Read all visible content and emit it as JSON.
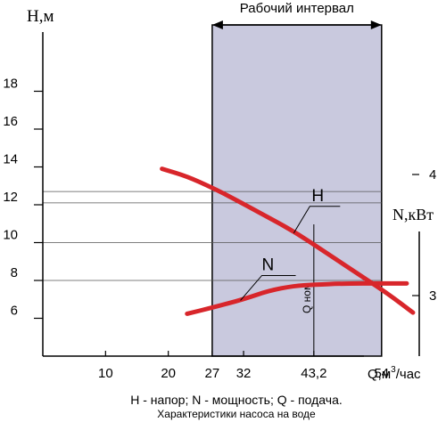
{
  "chart_data": {
    "type": "line",
    "x_tick_labels": [
      "10",
      "20",
      "27",
      "32",
      "43,2",
      "54"
    ],
    "left_y_tick_labels": [
      "6",
      "8",
      "10",
      "12",
      "14",
      "16",
      "18"
    ],
    "right_y_tick_labels": [
      "3",
      "4"
    ],
    "left_axis_label": "H,м",
    "right_axis_label": "N,кВт",
    "x_axis_label_main": "Q,м",
    "x_axis_label_sup": "3",
    "x_axis_label_tail": "/час",
    "xlim": [
      0,
      60
    ],
    "left_ylim": [
      4,
      20
    ],
    "right_ylim": [
      2.5,
      5
    ],
    "working_interval": {
      "label": "Рабочий интервал",
      "x_start": 27,
      "x_end": 54,
      "color": "#c9c9de"
    },
    "nominal": {
      "label": "Q ном",
      "x": 43.2
    },
    "reference_lines_H": [
      12.7,
      12.1,
      10,
      8
    ],
    "series": [
      {
        "name": "H",
        "axis": "left",
        "color": "#d8262b",
        "x": [
          19,
          23,
          27,
          30,
          35,
          40,
          45,
          50,
          55,
          59
        ],
        "y": [
          13.9,
          13.5,
          12.9,
          12.4,
          11.5,
          10.6,
          9.5,
          8.4,
          7.3,
          6.3
        ]
      },
      {
        "name": "N",
        "axis": "right",
        "color": "#d8262b",
        "x": [
          23,
          27,
          32,
          36,
          40,
          43.2,
          48,
          54,
          58
        ],
        "y": [
          2.85,
          2.9,
          2.97,
          3.04,
          3.08,
          3.09,
          3.1,
          3.1,
          3.1
        ]
      }
    ]
  },
  "captions": {
    "legend_line": "H - напор; N - мощность; Q - подача.",
    "subtitle": "Характеристики насоса на воде"
  }
}
